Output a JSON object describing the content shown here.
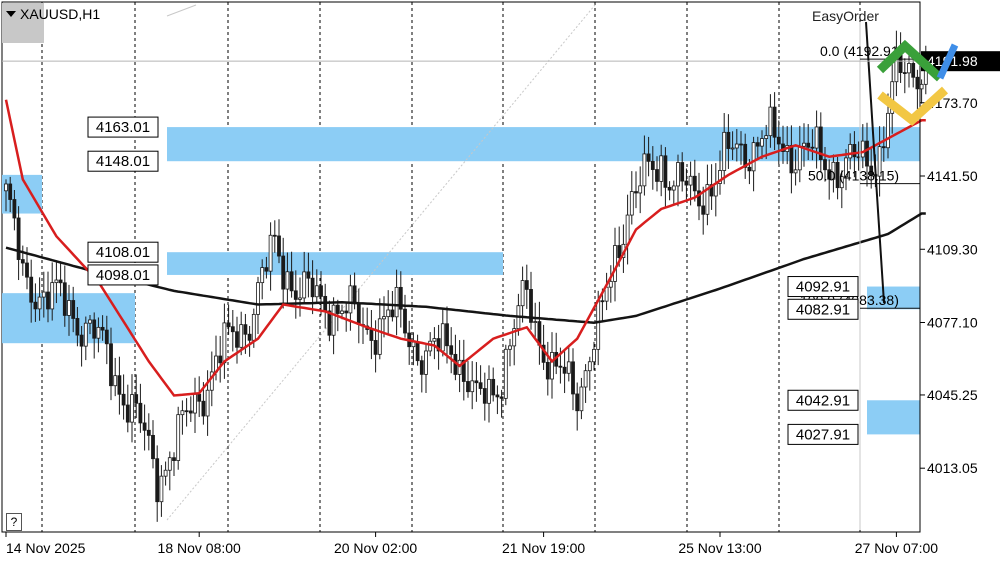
{
  "symbol": "XAUUSD,H1",
  "easy_order": "EasyOrder",
  "help_label": "?",
  "colors": {
    "ma_fast": "#d81e1e",
    "ma_slow": "#141414",
    "zone": "#8ccdf5",
    "candle": "#1a1a1a",
    "grid": "#000000",
    "fib": "#c8c8c8"
  },
  "chart_data": {
    "type": "candlestick",
    "symbol": "XAUUSD",
    "timeframe": "H1",
    "ylim": [
      3985,
      4218
    ],
    "current_price": "4191.98",
    "x_ticks": [
      {
        "label": "14 Nov 2025",
        "index": 0
      },
      {
        "label": "18 Nov 08:00",
        "index": 46
      },
      {
        "label": "20 Nov 02:00",
        "index": 88
      },
      {
        "label": "21 Nov 19:00",
        "index": 128
      },
      {
        "label": "25 Nov 13:00",
        "index": 170
      },
      {
        "label": "27 Nov 07:00",
        "index": 212
      }
    ],
    "price_axis": [
      "4173.70",
      "4141.50",
      "4109.30",
      "4077.10",
      "4045.25",
      "4013.05"
    ],
    "price_axis_values": [
      4173.7,
      4141.5,
      4109.3,
      4077.1,
      4045.25,
      4013.05
    ],
    "zones": [
      {
        "top": "4163.01",
        "bottom": "4148.01"
      },
      {
        "top": "4108.01",
        "bottom": "4098.01"
      },
      {
        "top": "4092.91",
        "bottom": "4082.91"
      },
      {
        "top": "4042.91",
        "bottom": "4027.91"
      }
    ],
    "fib_levels": [
      {
        "label": "0.0 (4192.91)",
        "price": 4192.91
      },
      {
        "label": "50.0 (4138.15)",
        "price": 4138.15
      },
      {
        "label": "100.0 (4083.38)",
        "price": 4083.38
      }
    ],
    "close_keypoints": [
      [
        0,
        4135
      ],
      [
        4,
        4095
      ],
      [
        10,
        4090
      ],
      [
        20,
        4075
      ],
      [
        30,
        4040
      ],
      [
        36,
        4010
      ],
      [
        42,
        4030
      ],
      [
        50,
        4060
      ],
      [
        58,
        4080
      ],
      [
        64,
        4110
      ],
      [
        70,
        4090
      ],
      [
        78,
        4085
      ],
      [
        86,
        4075
      ],
      [
        94,
        4080
      ],
      [
        100,
        4060
      ],
      [
        106,
        4070
      ],
      [
        112,
        4040
      ],
      [
        118,
        4055
      ],
      [
        124,
        4090
      ],
      [
        130,
        4055
      ],
      [
        136,
        4048
      ],
      [
        142,
        4080
      ],
      [
        148,
        4130
      ],
      [
        156,
        4148
      ],
      [
        164,
        4130
      ],
      [
        172,
        4150
      ],
      [
        180,
        4158
      ],
      [
        190,
        4152
      ],
      [
        200,
        4145
      ],
      [
        208,
        4152
      ],
      [
        212,
        4185
      ],
      [
        216,
        4190
      ]
    ],
    "ma_fast_keypoints": [
      [
        0,
        4175
      ],
      [
        4,
        4140
      ],
      [
        12,
        4115
      ],
      [
        22,
        4095
      ],
      [
        34,
        4060
      ],
      [
        40,
        4045
      ],
      [
        46,
        4046
      ],
      [
        52,
        4060
      ],
      [
        60,
        4070
      ],
      [
        66,
        4085
      ],
      [
        76,
        4082
      ],
      [
        86,
        4075
      ],
      [
        94,
        4070
      ],
      [
        102,
        4067
      ],
      [
        108,
        4058
      ],
      [
        116,
        4070
      ],
      [
        124,
        4075
      ],
      [
        130,
        4060
      ],
      [
        136,
        4070
      ],
      [
        144,
        4097
      ],
      [
        150,
        4118
      ],
      [
        156,
        4127
      ],
      [
        164,
        4132
      ],
      [
        172,
        4142
      ],
      [
        180,
        4150
      ],
      [
        188,
        4155
      ],
      [
        196,
        4150
      ],
      [
        204,
        4152
      ],
      [
        212,
        4160
      ],
      [
        218,
        4166
      ]
    ],
    "ma_slow_keypoints": [
      [
        0,
        4110
      ],
      [
        20,
        4100
      ],
      [
        40,
        4091
      ],
      [
        60,
        4085
      ],
      [
        80,
        4086
      ],
      [
        100,
        4084
      ],
      [
        120,
        4080
      ],
      [
        140,
        4077
      ],
      [
        150,
        4080
      ],
      [
        170,
        4092
      ],
      [
        190,
        4105
      ],
      [
        210,
        4116
      ],
      [
        218,
        4125
      ]
    ]
  }
}
